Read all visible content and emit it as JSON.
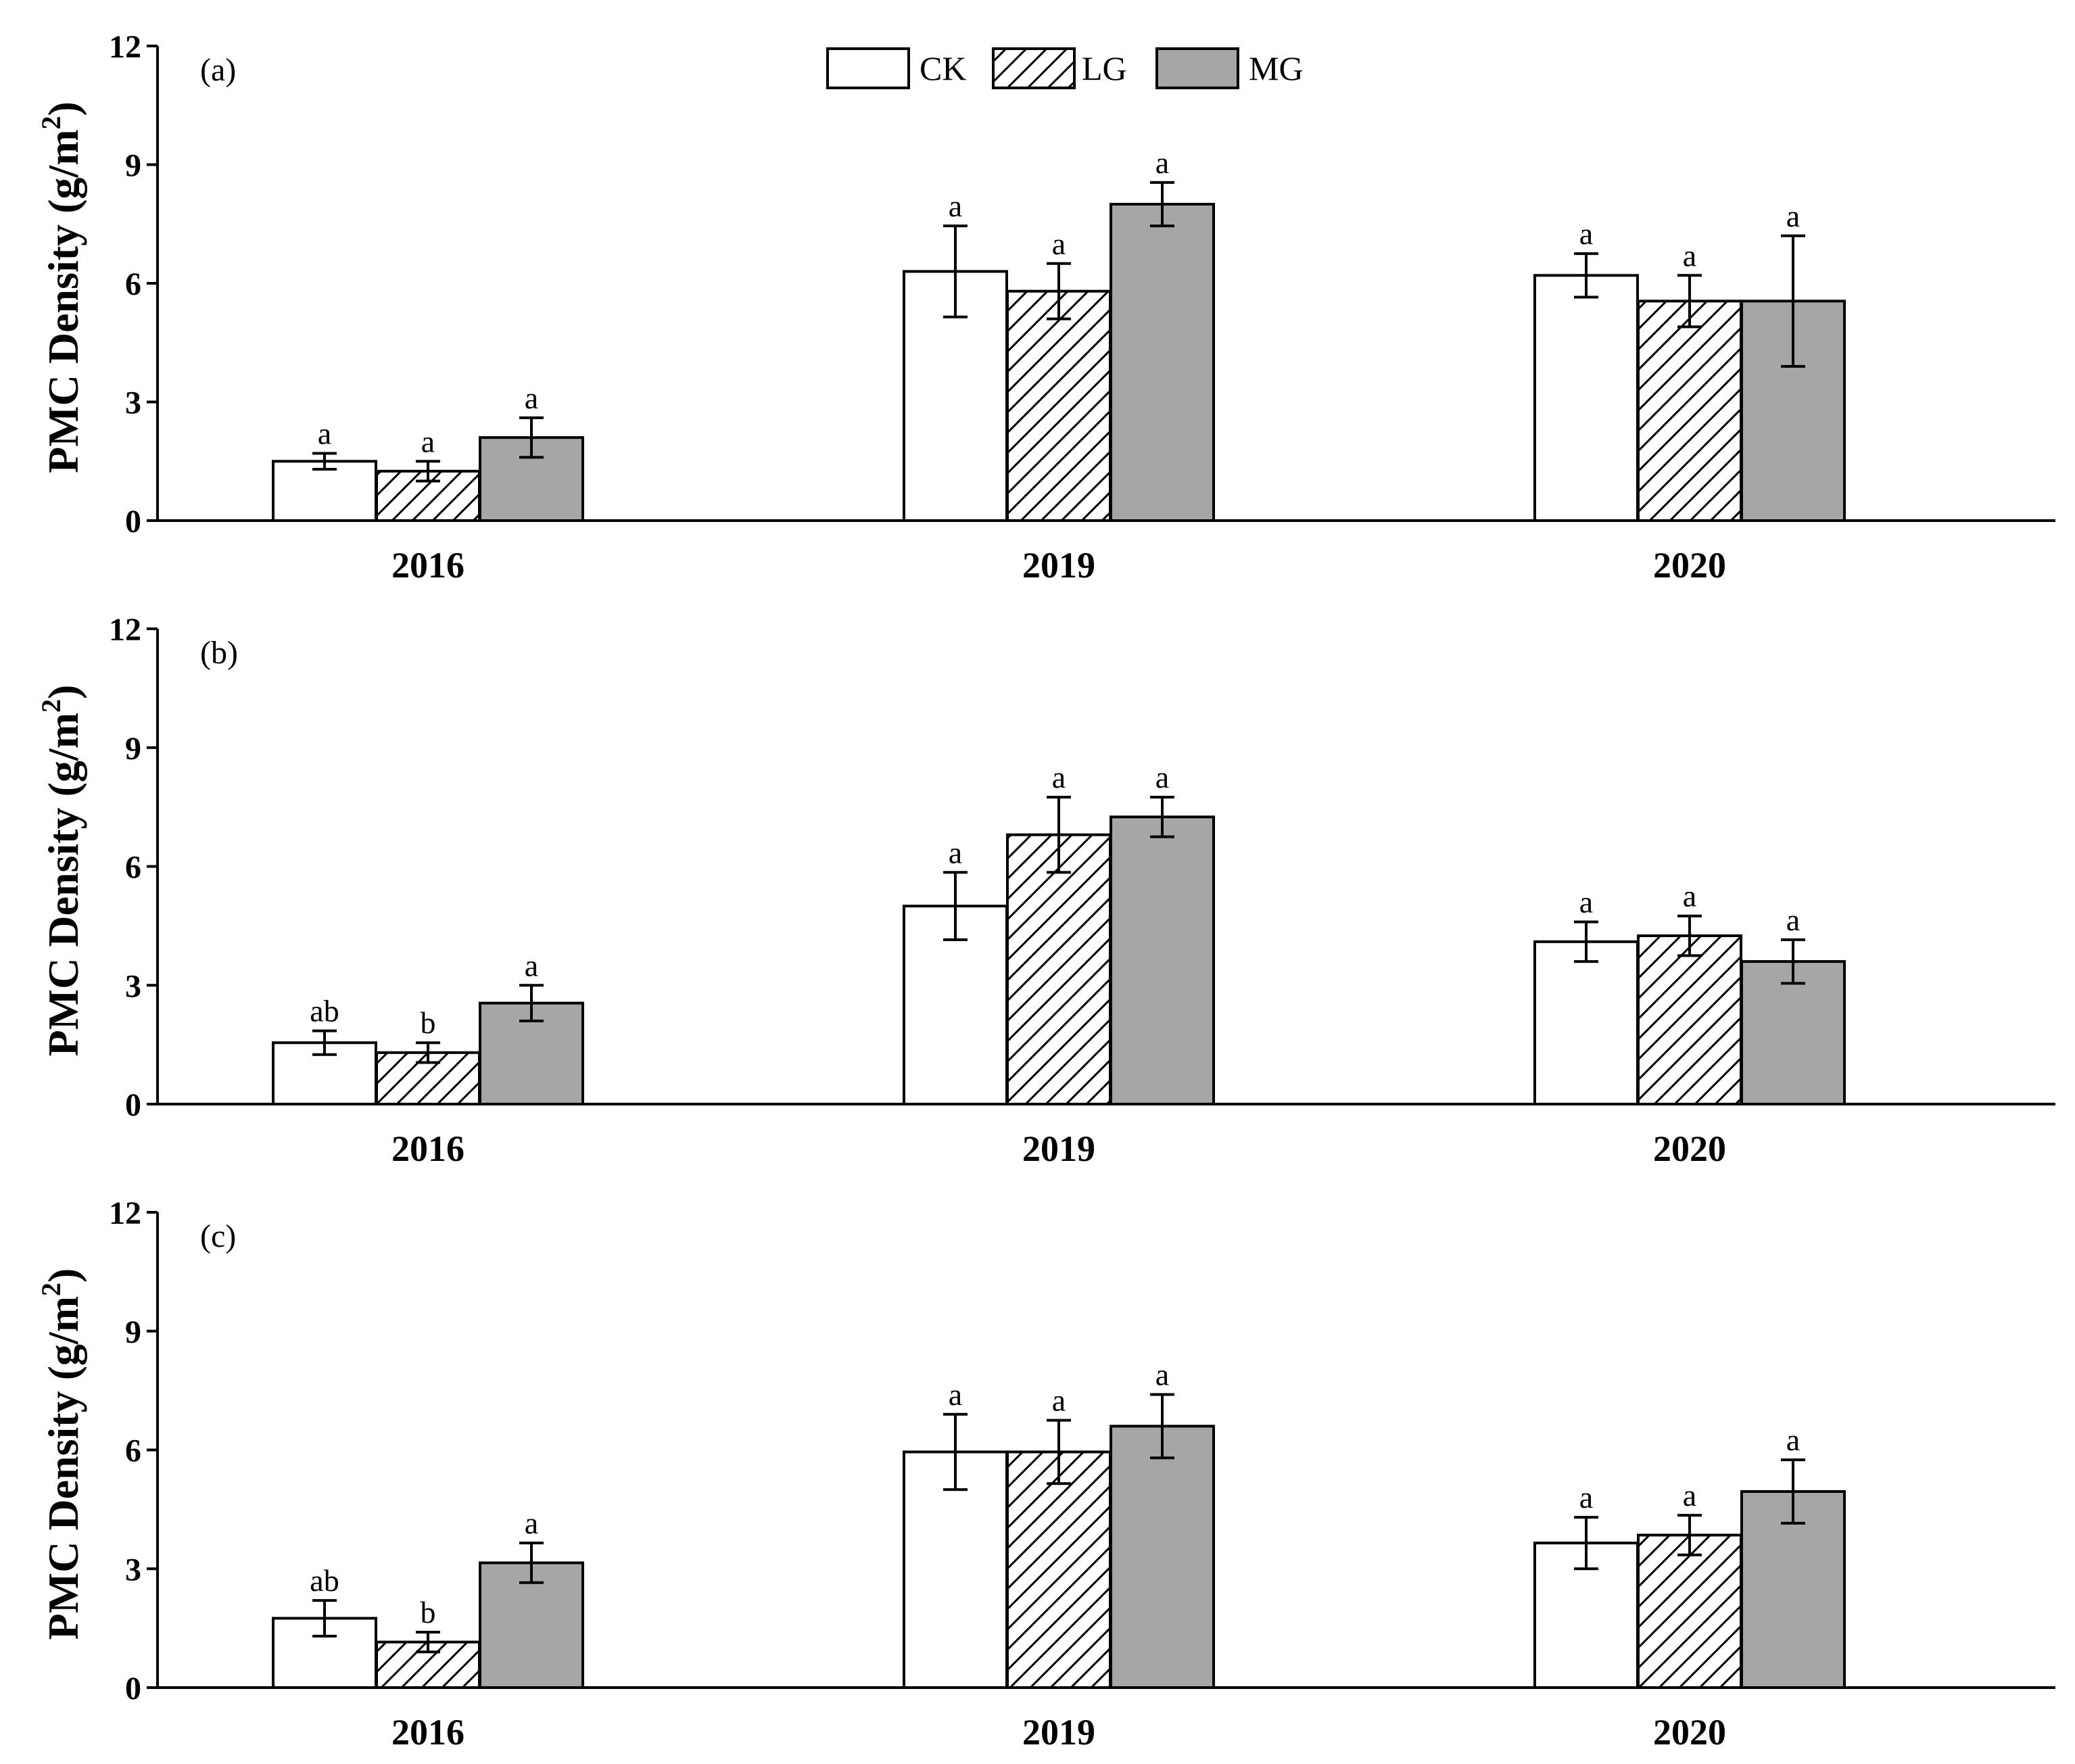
{
  "legend": [
    {
      "name": "CK",
      "fill": "#ffffff",
      "pattern": "none"
    },
    {
      "name": "LG",
      "fill": "#ffffff",
      "pattern": "hatch"
    },
    {
      "name": "MG",
      "fill": "#a6a6a6",
      "pattern": "none"
    }
  ],
  "colors": {
    "axis": "#000000",
    "bar_stroke": "#000000",
    "mg_fill": "#a6a6a6"
  },
  "chart_data": [
    {
      "type": "bar",
      "panel_label": "(a)",
      "title": "",
      "xlabel": "",
      "ylabel": "PMC Density (g/m",
      "ylabel_sup": "2",
      "ylabel_close": ")",
      "ylim": [
        0,
        12
      ],
      "yticks": [
        "0",
        "3",
        "6",
        "9",
        "12"
      ],
      "categories": [
        "2016",
        "2019",
        "2020"
      ],
      "legend_position": "top-center",
      "series": [
        {
          "name": "CK",
          "values": [
            1.5,
            6.3,
            6.2
          ],
          "errors": [
            0.2,
            1.15,
            0.55
          ],
          "letters": [
            "a",
            "a",
            "a"
          ]
        },
        {
          "name": "LG",
          "values": [
            1.25,
            5.8,
            5.55
          ],
          "errors": [
            0.25,
            0.7,
            0.65
          ],
          "letters": [
            "a",
            "a",
            "a"
          ]
        },
        {
          "name": "MG",
          "values": [
            2.1,
            8.0,
            5.55
          ],
          "errors": [
            0.5,
            0.55,
            1.65
          ],
          "letters": [
            "a",
            "a",
            "a"
          ]
        }
      ]
    },
    {
      "type": "bar",
      "panel_label": "(b)",
      "title": "",
      "xlabel": "",
      "ylabel": "PMC Density (g/m",
      "ylabel_sup": "2",
      "ylabel_close": ")",
      "ylim": [
        0,
        12
      ],
      "yticks": [
        "0",
        "3",
        "6",
        "9",
        "12"
      ],
      "categories": [
        "2016",
        "2019",
        "2020"
      ],
      "series": [
        {
          "name": "CK",
          "values": [
            1.55,
            5.0,
            4.1
          ],
          "errors": [
            0.3,
            0.85,
            0.5
          ],
          "letters": [
            "ab",
            "a",
            "a"
          ]
        },
        {
          "name": "LG",
          "values": [
            1.3,
            6.8,
            4.25
          ],
          "errors": [
            0.25,
            0.95,
            0.5
          ],
          "letters": [
            "b",
            "a",
            "a"
          ]
        },
        {
          "name": "MG",
          "values": [
            2.55,
            7.25,
            3.6
          ],
          "errors": [
            0.45,
            0.5,
            0.55
          ],
          "letters": [
            "a",
            "a",
            "a"
          ]
        }
      ]
    },
    {
      "type": "bar",
      "panel_label": "(c)",
      "title": "",
      "xlabel": "",
      "ylabel": "PMC Density (g/m",
      "ylabel_sup": "2",
      "ylabel_close": ")",
      "ylim": [
        0,
        12
      ],
      "yticks": [
        "0",
        "3",
        "6",
        "9",
        "12"
      ],
      "categories": [
        "2016",
        "2019",
        "2020"
      ],
      "series": [
        {
          "name": "CK",
          "values": [
            1.75,
            5.95,
            3.65
          ],
          "errors": [
            0.45,
            0.95,
            0.65
          ],
          "letters": [
            "ab",
            "a",
            "a"
          ]
        },
        {
          "name": "LG",
          "values": [
            1.15,
            5.95,
            3.85
          ],
          "errors": [
            0.25,
            0.8,
            0.5
          ],
          "letters": [
            "b",
            "a",
            "a"
          ]
        },
        {
          "name": "MG",
          "values": [
            3.15,
            6.6,
            4.95
          ],
          "errors": [
            0.5,
            0.8,
            0.8
          ],
          "letters": [
            "a",
            "a",
            "a"
          ]
        }
      ]
    }
  ]
}
